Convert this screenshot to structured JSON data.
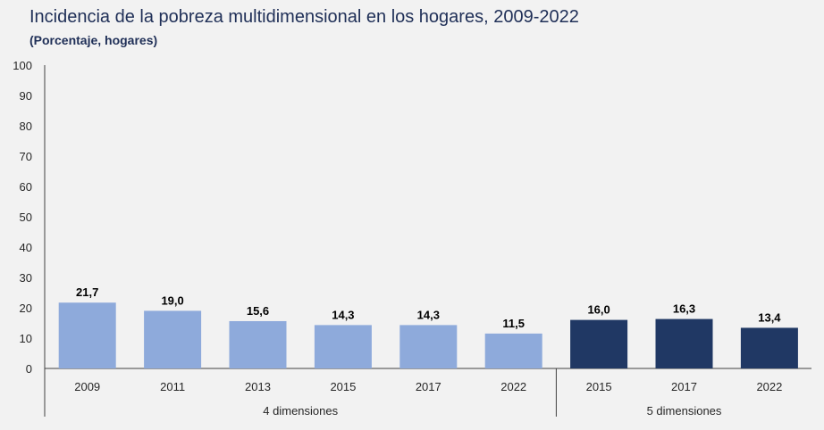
{
  "title": "Incidencia de la pobreza multidimensional en los hogares, 2009-2022",
  "subtitle": "(Porcentaje, hogares)",
  "chart_data": {
    "type": "bar",
    "ylim": [
      0,
      100
    ],
    "yticks": [
      0,
      10,
      20,
      30,
      40,
      50,
      60,
      70,
      80,
      90,
      100
    ],
    "grid": false,
    "groups": [
      {
        "label": "4 dimensiones",
        "color": "#8eaadb",
        "categories": [
          "2009",
          "2011",
          "2013",
          "2015",
          "2017",
          "2022"
        ],
        "values": [
          21.7,
          19.0,
          15.6,
          14.3,
          14.3,
          11.5
        ],
        "value_labels": [
          "21,7",
          "19,0",
          "15,6",
          "14,3",
          "14,3",
          "11,5"
        ]
      },
      {
        "label": "5 dimensiones",
        "color": "#203864",
        "categories": [
          "2015",
          "2017",
          "2022"
        ],
        "values": [
          16.0,
          16.3,
          13.4
        ],
        "value_labels": [
          "16,0",
          "16,3",
          "13,4"
        ]
      }
    ]
  }
}
